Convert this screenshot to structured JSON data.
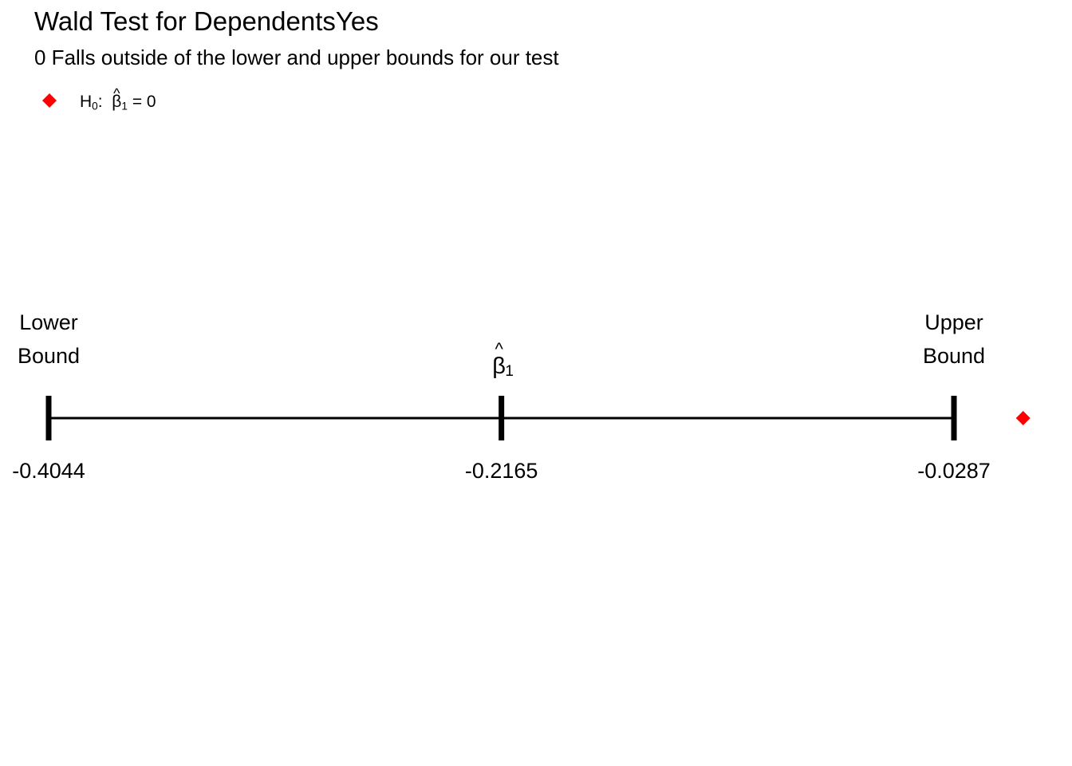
{
  "title": "Wald Test for DependentsYes",
  "subtitle": "0 Falls outside of the lower and upper bounds for our test",
  "legend": {
    "h_text": "H",
    "h_sub": "0",
    "colon": ":",
    "beta": "β",
    "beta_sub": "1",
    "equals": "= 0"
  },
  "colors": {
    "null_marker": "#ff0000",
    "line": "#000000"
  },
  "chart_data": {
    "type": "interval",
    "title": "Wald Test for DependentsYes",
    "subtitle": "0 Falls outside of the lower and upper bounds for our test",
    "estimate": -0.2165,
    "lower": -0.4044,
    "upper": -0.0287,
    "null_value": 0,
    "tick_labels": [
      "-0.4044",
      "-0.2165",
      "-0.0287"
    ],
    "lower_label": [
      "Lower",
      "Bound"
    ],
    "upper_label": [
      "Upper",
      "Bound"
    ],
    "estimate_label": {
      "symbol": "β",
      "sub": "1"
    },
    "xlim": [
      -0.4044,
      -0.0287
    ],
    "legend": "top-left",
    "grid": false
  }
}
